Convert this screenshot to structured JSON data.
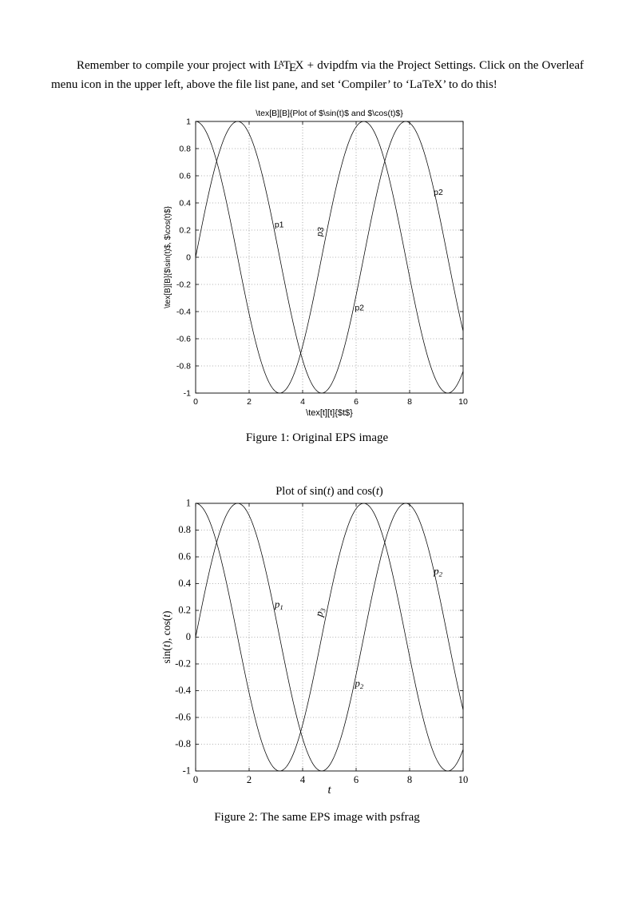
{
  "page": {
    "paragraph": {
      "part1": "Remember to compile your project with ",
      "latex_logo": "LaTeX",
      "part2": " + dvipdfm via the Project Settings. Click on the Overleaf menu icon in the upper left, above the file list pane, and set ‘Compiler’ to ‘LaTeX’ to do this!"
    },
    "captions": {
      "fig1": "Figure 1: Original EPS image",
      "fig2": "Figure 2: The same EPS image with psfrag"
    }
  },
  "chart_data": [
    {
      "type": "line",
      "font": "sans",
      "title_parts": [
        {
          "t": "\\tex[B][B]{Plot of $\\sin(t)$ and $\\cos(t)$}"
        }
      ],
      "ylabel_parts": [
        {
          "t": "\\tex[B][B]{$\\sin(t)$, $\\cos(t)$}"
        }
      ],
      "xlabel_parts": [
        {
          "t": "\\tex[t][t]{$t$}"
        }
      ],
      "xlim": [
        0,
        10
      ],
      "ylim": [
        -1,
        1
      ],
      "grid": true,
      "legend": "none",
      "x_ticks": [
        0,
        2,
        4,
        6,
        8,
        10
      ],
      "x_tick_labels": [
        "0",
        "2",
        "4",
        "6",
        "8",
        "10"
      ],
      "y_ticks": [
        -1,
        -0.8,
        -0.6,
        -0.4,
        -0.2,
        0,
        0.2,
        0.4,
        0.6,
        0.8,
        1
      ],
      "y_tick_labels": [
        "-1",
        "-0.8",
        "-0.6",
        "-0.4",
        "-0.2",
        "0",
        "0.2",
        "0.4",
        "0.6",
        "0.8",
        "1"
      ],
      "series": [
        {
          "name": "sin(t)",
          "fn": "sin",
          "x_min": 0,
          "x_max": 10
        },
        {
          "name": "cos(t)",
          "fn": "cos",
          "x_min": 0,
          "x_max": 10
        }
      ],
      "annotations": [
        {
          "t": "p1",
          "x": 2.95,
          "y": 0.22,
          "rotate": 0
        },
        {
          "t": "p3",
          "x": 4.72,
          "y": 0.15,
          "rotate": -78
        },
        {
          "t": "p2",
          "x": 5.95,
          "y": -0.39,
          "rotate": 0
        },
        {
          "t": "p2",
          "x": 8.9,
          "y": 0.46,
          "rotate": 0
        }
      ]
    },
    {
      "type": "line",
      "font": "serif",
      "title_parts": [
        {
          "t": "Plot of sin("
        },
        {
          "t": "t",
          "i": true
        },
        {
          "t": ") and cos("
        },
        {
          "t": "t",
          "i": true
        },
        {
          "t": ")"
        }
      ],
      "ylabel_parts": [
        {
          "t": "sin("
        },
        {
          "t": "t",
          "i": true
        },
        {
          "t": "), cos("
        },
        {
          "t": "t",
          "i": true
        },
        {
          "t": ")"
        }
      ],
      "xlabel_parts": [
        {
          "t": "t",
          "i": true
        }
      ],
      "xlim": [
        0,
        10
      ],
      "ylim": [
        -1,
        1
      ],
      "grid": true,
      "legend": "none",
      "x_ticks": [
        0,
        2,
        4,
        6,
        8,
        10
      ],
      "x_tick_labels": [
        "0",
        "2",
        "4",
        "6",
        "8",
        "10"
      ],
      "y_ticks": [
        -1,
        -0.8,
        -0.6,
        -0.4,
        -0.2,
        0,
        0.2,
        0.4,
        0.6,
        0.8,
        1
      ],
      "y_tick_labels": [
        "-1",
        "-0.8",
        "-0.6",
        "-0.4",
        "-0.2",
        "0",
        "0.2",
        "0.4",
        "0.6",
        "0.8",
        "1"
      ],
      "series": [
        {
          "name": "sin(t)",
          "fn": "sin",
          "x_min": 0,
          "x_max": 10
        },
        {
          "name": "cos(t)",
          "fn": "cos",
          "x_min": 0,
          "x_max": 10
        }
      ],
      "annotations": [
        {
          "t": "p",
          "sub": "1",
          "i": true,
          "x": 2.95,
          "y": 0.22,
          "rotate": 0
        },
        {
          "t": "p",
          "sub": "3",
          "i": true,
          "x": 4.72,
          "y": 0.15,
          "rotate": -78
        },
        {
          "t": "p",
          "sub": "2",
          "i": true,
          "x": 5.95,
          "y": -0.37,
          "rotate": 0
        },
        {
          "t": "p",
          "sub": "2",
          "i": true,
          "x": 8.9,
          "y": 0.47,
          "rotate": 0
        }
      ]
    }
  ]
}
